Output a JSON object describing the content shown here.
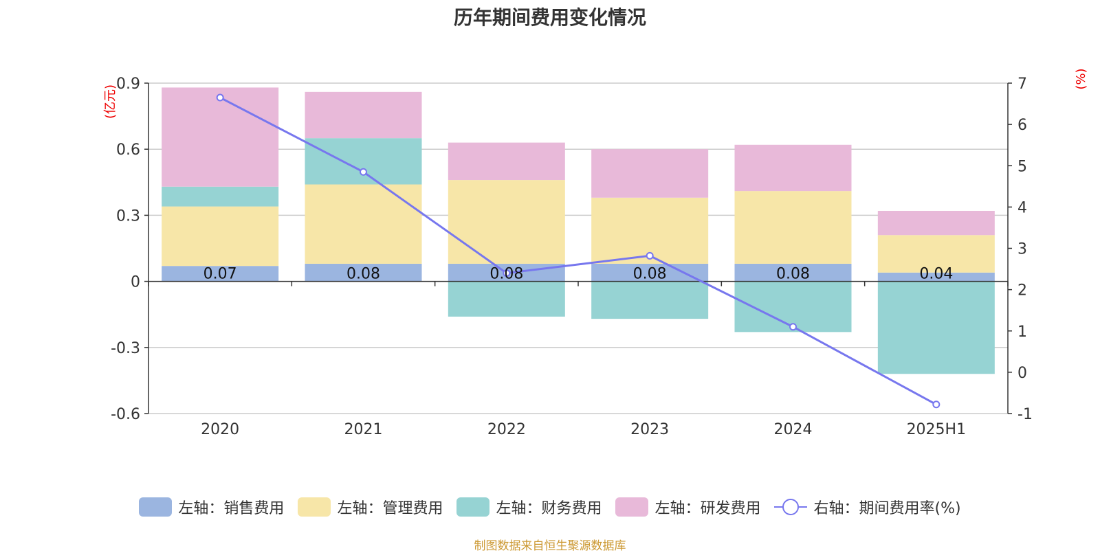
{
  "chart_data": {
    "type": "bar",
    "title": "历年期间费用变化情况",
    "categories": [
      "2020",
      "2021",
      "2022",
      "2023",
      "2024",
      "2025H1"
    ],
    "left_axis": {
      "unit_label": "(亿元)",
      "ylim": [
        -0.6,
        0.9
      ],
      "ticks": [
        "-0.6",
        "-0.3",
        "0",
        "0.3",
        "0.6",
        "0.9"
      ]
    },
    "right_axis": {
      "unit_label": "(%)",
      "ylim": [
        -1,
        7
      ],
      "ticks": [
        "-1",
        "0",
        "1",
        "2",
        "3",
        "4",
        "5",
        "6",
        "7"
      ]
    },
    "stacked": true,
    "grid": true,
    "legend_position": "bottom",
    "series": [
      {
        "name": "左轴：销售费用",
        "axis": "left",
        "color": "#9bb5e0",
        "values": [
          0.07,
          0.08,
          0.08,
          0.08,
          0.08,
          0.04
        ],
        "data_labels": [
          "0.07",
          "0.08",
          "0.08",
          "0.08",
          "0.08",
          "0.04"
        ]
      },
      {
        "name": "左轴：管理费用",
        "axis": "left",
        "color": "#f7e6a8",
        "values": [
          0.27,
          0.36,
          0.38,
          0.3,
          0.33,
          0.17
        ]
      },
      {
        "name": "左轴：财务费用",
        "axis": "left",
        "color": "#96d3d3",
        "values": [
          0.09,
          0.21,
          -0.16,
          -0.17,
          -0.23,
          -0.42
        ]
      },
      {
        "name": "左轴：研发费用",
        "axis": "left",
        "color": "#e8b9d9",
        "values": [
          0.45,
          0.21,
          0.17,
          0.22,
          0.21,
          0.11
        ]
      },
      {
        "name": "右轴：期间费用率(%)",
        "axis": "right",
        "type": "line",
        "color": "#7777ee",
        "values": [
          6.65,
          4.85,
          2.4,
          2.82,
          1.1,
          -0.78
        ]
      }
    ]
  },
  "source_note": "制图数据来自恒生聚源数据库"
}
